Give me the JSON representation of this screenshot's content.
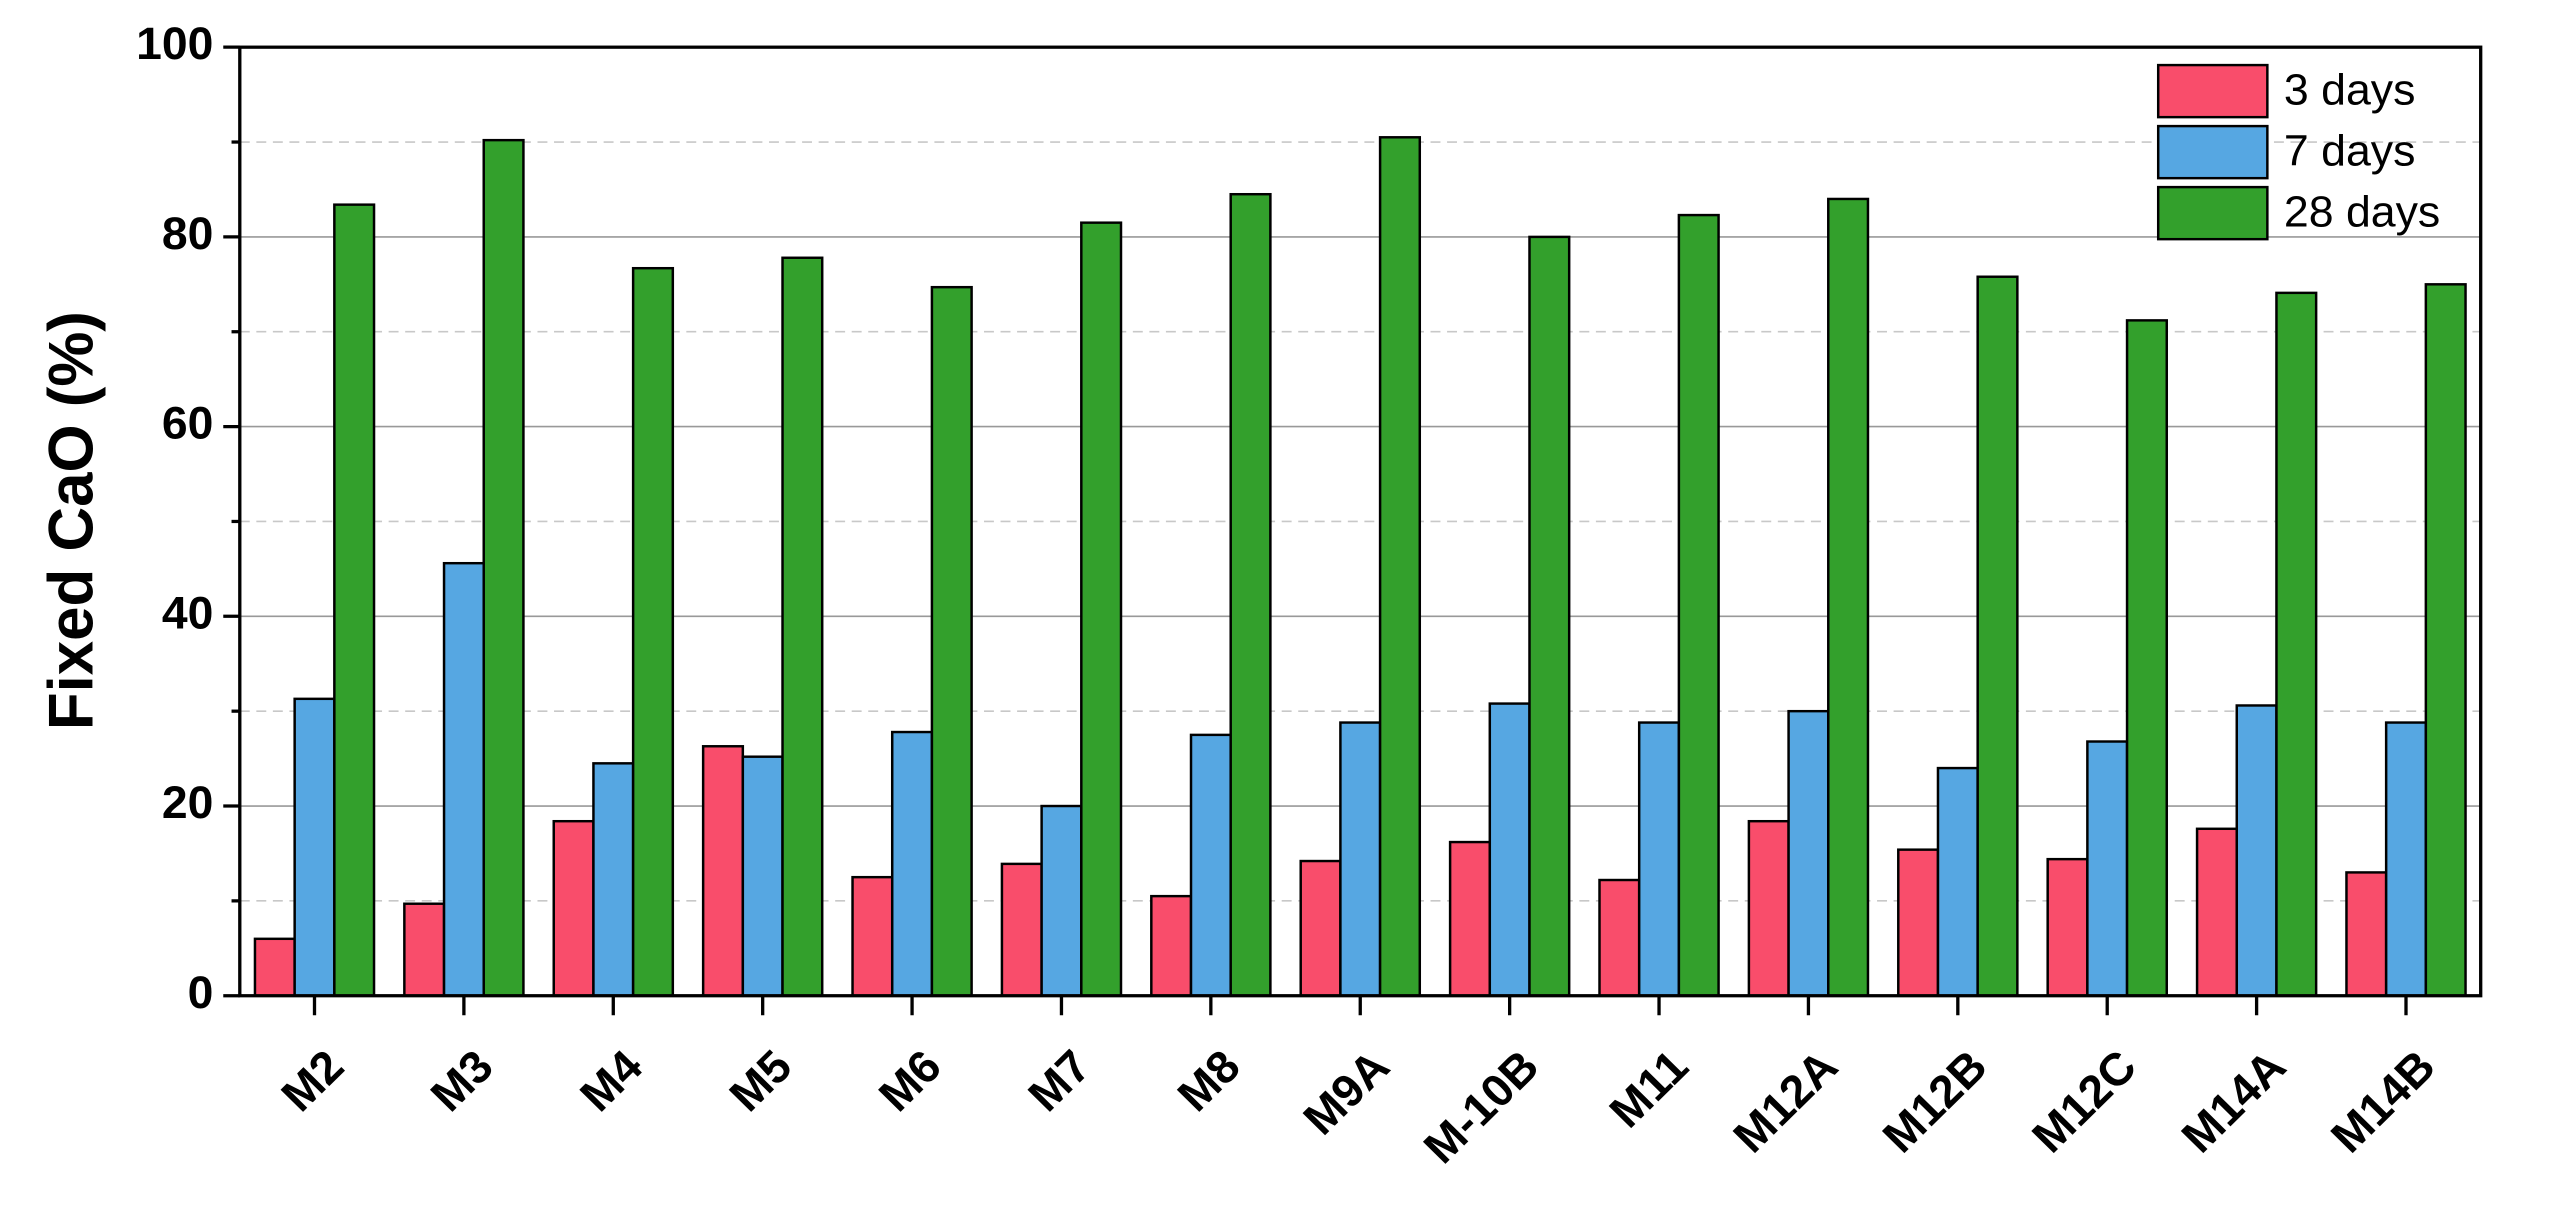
{
  "chart_data": {
    "type": "bar",
    "y_label": "Fixed CaO (%)",
    "categories": [
      "M2",
      "M3",
      "M4",
      "M5",
      "M6",
      "M7",
      "M8",
      "M9A",
      "M-10B",
      "M11",
      "M12A",
      "M12B",
      "M12C",
      "M14A",
      "M14B"
    ],
    "series": [
      {
        "name": "3 days",
        "color": "#f94d6b",
        "values": [
          6.0,
          9.7,
          18.4,
          26.3,
          12.5,
          13.9,
          10.5,
          14.2,
          16.2,
          12.2,
          18.4,
          15.4,
          14.4,
          17.6,
          13.0
        ]
      },
      {
        "name": "7 days",
        "color": "#56a7e2",
        "values": [
          31.3,
          45.6,
          24.5,
          25.2,
          27.8,
          20.0,
          27.5,
          28.8,
          30.8,
          28.8,
          30.0,
          24.0,
          26.8,
          30.6,
          28.8
        ]
      },
      {
        "name": "28 days",
        "color": "#33a02c",
        "values": [
          83.4,
          90.2,
          76.7,
          77.8,
          74.7,
          81.5,
          84.5,
          90.5,
          80.0,
          82.3,
          84.0,
          75.8,
          71.2,
          74.1,
          75.0
        ]
      }
    ],
    "ylim": [
      0,
      100
    ],
    "yticks": [
      0,
      20,
      40,
      60,
      80,
      100
    ],
    "minor_yticks": [
      10,
      30,
      50,
      70,
      90
    ],
    "grid": true,
    "legend": "upper right"
  }
}
